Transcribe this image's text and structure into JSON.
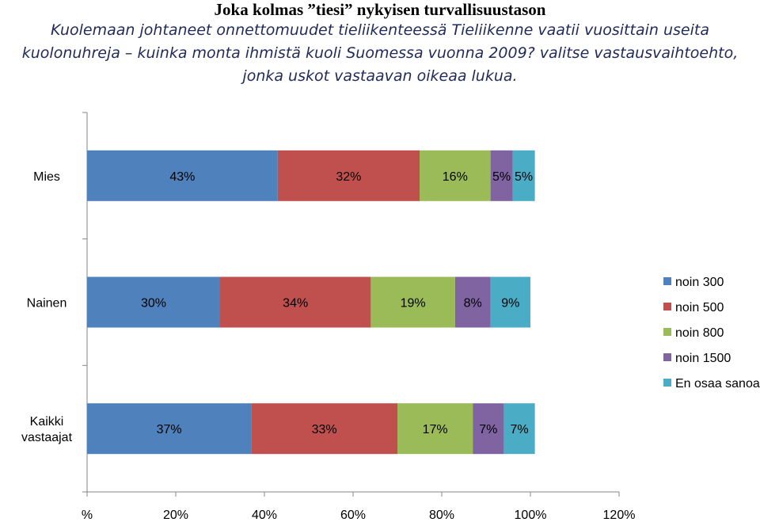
{
  "chart_data": {
    "type": "bar",
    "orientation": "horizontal",
    "stacked": true,
    "title": "Joka kolmas ”tiesi” nykyisen turvallisuustason",
    "subtitle": "Kuolemaan johtaneet onnettomuudet tieliikenteessä Tieliikenne vaatii vuosittain useita kuolonuhreja – kuinka monta ihmistä kuoli Suomessa vuonna 2009? valitse vastausvaihtoehto, jonka uskot vastaavan oikeaa lukua.",
    "categories": [
      "Mies",
      "Nainen",
      "Kaikki vastaajat"
    ],
    "series": [
      {
        "name": "noin 300",
        "color": "#4f81bd",
        "values": [
          43,
          30,
          37
        ],
        "labels": [
          "43%",
          "30%",
          "37%"
        ]
      },
      {
        "name": "noin 500",
        "color": "#c0504d",
        "values": [
          32,
          34,
          33
        ],
        "labels": [
          "32%",
          "34%",
          "33%"
        ]
      },
      {
        "name": "noin 800",
        "color": "#9bbb59",
        "values": [
          16,
          19,
          17
        ],
        "labels": [
          "16%",
          "19%",
          "17%"
        ]
      },
      {
        "name": "noin 1500",
        "color": "#8064a2",
        "values": [
          5,
          8,
          7
        ],
        "labels": [
          "5%",
          "8%",
          "7%"
        ]
      },
      {
        "name": "En osaa sanoa",
        "color": "#4bacc6",
        "values": [
          5,
          9,
          7
        ],
        "labels": [
          "5%",
          "9%",
          "7%"
        ]
      }
    ],
    "xlim": [
      0,
      120
    ],
    "xticks": [
      0,
      20,
      40,
      60,
      80,
      100,
      120
    ],
    "xtick_labels": [
      "%",
      "20%",
      "40%",
      "60%",
      "80%",
      "100%",
      "120%"
    ],
    "xlabel": "",
    "ylabel": "",
    "grid": false,
    "legend": "right"
  }
}
